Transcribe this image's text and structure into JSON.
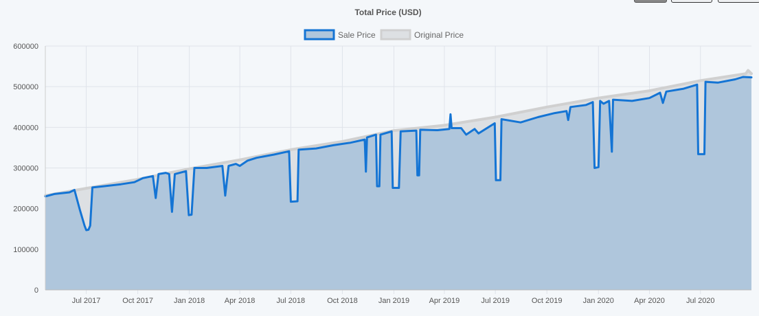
{
  "toolbar": {
    "buttons": [
      "",
      "",
      ""
    ],
    "active_index": 0
  },
  "colors": {
    "sale_line": "#1474d4",
    "sale_fill": "#afc6dc",
    "original_line": "#d0d0d0",
    "original_fill": "#dde0e3",
    "grid": "#dfe3ea"
  },
  "chart_data": {
    "type": "area",
    "title": "Total Price (USD)",
    "xlabel": "",
    "ylabel": "",
    "ylim": [
      0,
      600000
    ],
    "yticks": [
      0,
      100000,
      200000,
      300000,
      400000,
      500000,
      600000
    ],
    "xlim": [
      "2017-04-19",
      "2020-09-30"
    ],
    "xticks": [
      {
        "date": "2017-07-01",
        "label": "Jul 2017"
      },
      {
        "date": "2017-10-01",
        "label": "Oct 2017"
      },
      {
        "date": "2018-01-01",
        "label": "Jan 2018"
      },
      {
        "date": "2018-04-01",
        "label": "Apr 2018"
      },
      {
        "date": "2018-07-01",
        "label": "Jul 2018"
      },
      {
        "date": "2018-10-01",
        "label": "Oct 2018"
      },
      {
        "date": "2019-01-01",
        "label": "Jan 2019"
      },
      {
        "date": "2019-04-01",
        "label": "Apr 2019"
      },
      {
        "date": "2019-07-01",
        "label": "Jul 2019"
      },
      {
        "date": "2019-10-01",
        "label": "Oct 2019"
      },
      {
        "date": "2020-01-01",
        "label": "Jan 2020"
      },
      {
        "date": "2020-04-01",
        "label": "Apr 2020"
      },
      {
        "date": "2020-07-01",
        "label": "Jul 2020"
      }
    ],
    "legend_position": "top-center",
    "grid": true,
    "series": [
      {
        "name": "Original Price",
        "points": [
          [
            "2017-04-19",
            232000
          ],
          [
            "2017-07-01",
            250000
          ],
          [
            "2017-10-01",
            272000
          ],
          [
            "2018-01-01",
            298000
          ],
          [
            "2018-04-01",
            320000
          ],
          [
            "2018-07-01",
            345000
          ],
          [
            "2018-10-01",
            365000
          ],
          [
            "2019-01-01",
            392000
          ],
          [
            "2019-04-01",
            405000
          ],
          [
            "2019-07-01",
            425000
          ],
          [
            "2019-10-01",
            450000
          ],
          [
            "2020-01-01",
            472000
          ],
          [
            "2020-04-01",
            490000
          ],
          [
            "2020-07-01",
            515000
          ],
          [
            "2020-09-20",
            532000
          ],
          [
            "2020-09-24",
            540000
          ],
          [
            "2020-09-30",
            532000
          ]
        ]
      },
      {
        "name": "Sale Price",
        "points": [
          [
            "2017-04-19",
            230000
          ],
          [
            "2017-05-05",
            236000
          ],
          [
            "2017-06-01",
            240000
          ],
          [
            "2017-06-10",
            246000
          ],
          [
            "2017-06-20",
            195000
          ],
          [
            "2017-06-28",
            158000
          ],
          [
            "2017-07-01",
            147000
          ],
          [
            "2017-07-05",
            148000
          ],
          [
            "2017-07-08",
            158000
          ],
          [
            "2017-07-12",
            252000
          ],
          [
            "2017-08-01",
            255000
          ],
          [
            "2017-09-01",
            260000
          ],
          [
            "2017-09-25",
            265000
          ],
          [
            "2017-10-10",
            275000
          ],
          [
            "2017-10-28",
            280000
          ],
          [
            "2017-11-02",
            226000
          ],
          [
            "2017-11-07",
            285000
          ],
          [
            "2017-11-20",
            288000
          ],
          [
            "2017-11-26",
            285000
          ],
          [
            "2017-12-01",
            192000
          ],
          [
            "2017-12-06",
            285000
          ],
          [
            "2017-12-20",
            290000
          ],
          [
            "2017-12-26",
            292000
          ],
          [
            "2017-12-31",
            184000
          ],
          [
            "2018-01-05",
            185000
          ],
          [
            "2018-01-10",
            300000
          ],
          [
            "2018-02-01",
            300000
          ],
          [
            "2018-03-01",
            305000
          ],
          [
            "2018-03-06",
            232000
          ],
          [
            "2018-03-12",
            305000
          ],
          [
            "2018-03-25",
            310000
          ],
          [
            "2018-04-01",
            305000
          ],
          [
            "2018-04-15",
            318000
          ],
          [
            "2018-05-01",
            325000
          ],
          [
            "2018-06-01",
            333000
          ],
          [
            "2018-06-28",
            341000
          ],
          [
            "2018-07-01",
            217000
          ],
          [
            "2018-07-13",
            218000
          ],
          [
            "2018-07-15",
            345000
          ],
          [
            "2018-08-15",
            348000
          ],
          [
            "2018-09-15",
            356000
          ],
          [
            "2018-10-15",
            362000
          ],
          [
            "2018-11-10",
            370000
          ],
          [
            "2018-11-12",
            291000
          ],
          [
            "2018-11-14",
            375000
          ],
          [
            "2018-11-30",
            382000
          ],
          [
            "2018-12-02",
            255000
          ],
          [
            "2018-12-06",
            255000
          ],
          [
            "2018-12-08",
            382000
          ],
          [
            "2018-12-28",
            390000
          ],
          [
            "2018-12-30",
            251000
          ],
          [
            "2019-01-10",
            251000
          ],
          [
            "2019-01-13",
            390000
          ],
          [
            "2019-02-10",
            392000
          ],
          [
            "2019-02-12",
            282000
          ],
          [
            "2019-02-15",
            282000
          ],
          [
            "2019-02-17",
            394000
          ],
          [
            "2019-03-20",
            393000
          ],
          [
            "2019-04-10",
            396000
          ],
          [
            "2019-04-12",
            432000
          ],
          [
            "2019-04-14",
            398000
          ],
          [
            "2019-05-01",
            398000
          ],
          [
            "2019-05-10",
            382000
          ],
          [
            "2019-05-25",
            396000
          ],
          [
            "2019-06-01",
            385000
          ],
          [
            "2019-06-30",
            410000
          ],
          [
            "2019-07-02",
            270000
          ],
          [
            "2019-07-10",
            270000
          ],
          [
            "2019-07-12",
            420000
          ],
          [
            "2019-08-15",
            412000
          ],
          [
            "2019-09-15",
            425000
          ],
          [
            "2019-10-15",
            435000
          ],
          [
            "2019-11-05",
            440000
          ],
          [
            "2019-11-08",
            418000
          ],
          [
            "2019-11-12",
            450000
          ],
          [
            "2019-12-10",
            455000
          ],
          [
            "2019-12-22",
            462000
          ],
          [
            "2019-12-25",
            300000
          ],
          [
            "2020-01-01",
            302000
          ],
          [
            "2020-01-04",
            465000
          ],
          [
            "2020-01-10",
            458000
          ],
          [
            "2020-01-20",
            465000
          ],
          [
            "2020-01-25",
            340000
          ],
          [
            "2020-01-27",
            468000
          ],
          [
            "2020-03-01",
            465000
          ],
          [
            "2020-04-01",
            472000
          ],
          [
            "2020-04-20",
            485000
          ],
          [
            "2020-04-25",
            460000
          ],
          [
            "2020-05-01",
            488000
          ],
          [
            "2020-06-01",
            495000
          ],
          [
            "2020-06-25",
            505000
          ],
          [
            "2020-06-27",
            334000
          ],
          [
            "2020-07-08",
            334000
          ],
          [
            "2020-07-10",
            512000
          ],
          [
            "2020-08-01",
            510000
          ],
          [
            "2020-09-01",
            518000
          ],
          [
            "2020-09-15",
            524000
          ],
          [
            "2020-09-30",
            523000
          ]
        ]
      }
    ]
  }
}
